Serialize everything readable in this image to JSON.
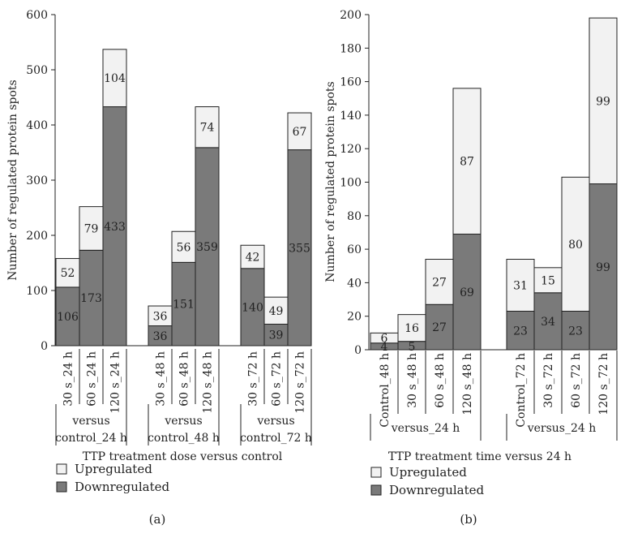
{
  "chart_data": [
    {
      "type": "bar",
      "stacked": true,
      "panel_label": "(a)",
      "ylabel": "Number of regulated protein spots",
      "xlabel": "TTP treatment dose versus control",
      "ylim": [
        0,
        600
      ],
      "yticks": [
        0,
        100,
        200,
        300,
        400,
        500,
        600
      ],
      "categories": [
        "30 s_24 h",
        "60 s_24 h",
        "120 s_24 h",
        "30 s_48 h",
        "60 s_48 h",
        "120 s_48 h",
        "30 s_72 h",
        "60 s_72 h",
        "120 s_72 h"
      ],
      "groups": [
        {
          "label_line1": "versus",
          "label_line2": "control_24 h",
          "categories": [
            0,
            1,
            2
          ]
        },
        {
          "label_line1": "versus",
          "label_line2": "control_48 h",
          "categories": [
            3,
            4,
            5
          ]
        },
        {
          "label_line1": "versus",
          "label_line2": "control_72 h",
          "categories": [
            6,
            7,
            8
          ]
        }
      ],
      "series": [
        {
          "name": "Downregulated",
          "values": [
            106,
            173,
            433,
            36,
            151,
            359,
            140,
            39,
            355
          ]
        },
        {
          "name": "Upregulated",
          "values": [
            52,
            79,
            104,
            36,
            56,
            74,
            42,
            49,
            67
          ]
        }
      ],
      "legend": [
        "Upregulated",
        "Downregulated"
      ],
      "legend_position": "bottom-left"
    },
    {
      "type": "bar",
      "stacked": true,
      "panel_label": "(b)",
      "ylabel": "Number of regulated protein spots",
      "xlabel": "TTP treatment time versus 24 h",
      "ylim": [
        0,
        200
      ],
      "yticks": [
        0,
        20,
        40,
        60,
        80,
        100,
        120,
        140,
        160,
        180,
        200
      ],
      "categories": [
        "Control_48 h",
        "30 s_48 h",
        "60 s_48 h",
        "120 s_48 h",
        "Control_72 h",
        "30 s_72 h",
        "60 s_72 h",
        "120 s_72 h"
      ],
      "groups": [
        {
          "label_line1": "versus_24 h",
          "categories": [
            0,
            1,
            2,
            3
          ]
        },
        {
          "label_line1": "versus_24 h",
          "categories": [
            4,
            5,
            6,
            7
          ]
        }
      ],
      "series": [
        {
          "name": "Downregulated",
          "values": [
            4,
            5,
            27,
            69,
            23,
            34,
            23,
            99
          ]
        },
        {
          "name": "Upregulated",
          "values": [
            6,
            16,
            27,
            87,
            31,
            15,
            80,
            99
          ]
        }
      ],
      "legend": [
        "Upregulated",
        "Downregulated"
      ],
      "legend_position": "bottom-left"
    }
  ],
  "colors": {
    "downregulated": "#7a7a7a",
    "upregulated": "#f2f2f2"
  }
}
